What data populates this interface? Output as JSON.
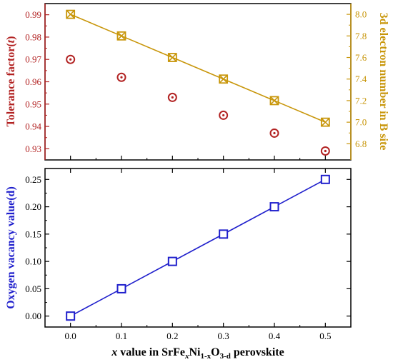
{
  "chart_data": [
    {
      "type": "scatter",
      "xlim": [
        -0.05,
        0.55
      ],
      "x_ticks": [
        "0.0",
        "0.1",
        "0.2",
        "0.3",
        "0.4",
        "0.5"
      ],
      "left_axis": {
        "label": "Tolerance factor(t)",
        "label_main": "Tolerance factor(",
        "label_italic": "t",
        "label_close": ")",
        "color": "#b22222",
        "ylim": [
          0.925,
          0.995
        ],
        "ticks": [
          "0.93",
          "0.94",
          "0.95",
          "0.96",
          "0.97",
          "0.98",
          "0.99"
        ]
      },
      "right_axis": {
        "label": "3d electron number in B site",
        "color": "#c8960a",
        "ylim": [
          6.65,
          8.1
        ],
        "ticks": [
          "6.8",
          "7.0",
          "7.2",
          "7.4",
          "7.6",
          "7.8",
          "8.0"
        ]
      },
      "series": [
        {
          "axis": "left",
          "marker": "circle-dot",
          "color": "#b22222",
          "x": [
            0.0,
            0.1,
            0.2,
            0.3,
            0.4,
            0.5
          ],
          "y": [
            0.97,
            0.962,
            0.953,
            0.945,
            0.937,
            0.929
          ]
        },
        {
          "axis": "right",
          "marker": "square-cross",
          "line": true,
          "color": "#c8960a",
          "x": [
            0.0,
            0.1,
            0.2,
            0.3,
            0.4,
            0.5
          ],
          "y": [
            8.0,
            7.8,
            7.6,
            7.4,
            7.2,
            7.0
          ]
        }
      ],
      "grid": false
    },
    {
      "type": "line",
      "xlim": [
        -0.05,
        0.55
      ],
      "x_ticks": [
        "0.0",
        "0.1",
        "0.2",
        "0.3",
        "0.4",
        "0.5"
      ],
      "ylim": [
        -0.02,
        0.27
      ],
      "y_ticks": [
        "0.00",
        "0.05",
        "0.10",
        "0.15",
        "0.20",
        "0.25"
      ],
      "ylabel": "Oxygen vacancy value(d)",
      "ylabel_color": "#1f1fcc",
      "xlabel": "x value in SrFexNi1-xO3-d perovskite",
      "xlabel_parts": {
        "x": "x",
        "text1": " value in SrFe",
        "sub1": "x",
        "text2": "Ni",
        "sub2": "1-x",
        "text3": "O",
        "sub3": "3-d",
        "text4": " perovskite"
      },
      "series": [
        {
          "marker": "square-open",
          "line": true,
          "color": "#1f1fcc",
          "x": [
            0.0,
            0.1,
            0.2,
            0.3,
            0.4,
            0.5
          ],
          "y": [
            0.0,
            0.05,
            0.1,
            0.15,
            0.2,
            0.25
          ]
        }
      ],
      "grid": false
    }
  ]
}
